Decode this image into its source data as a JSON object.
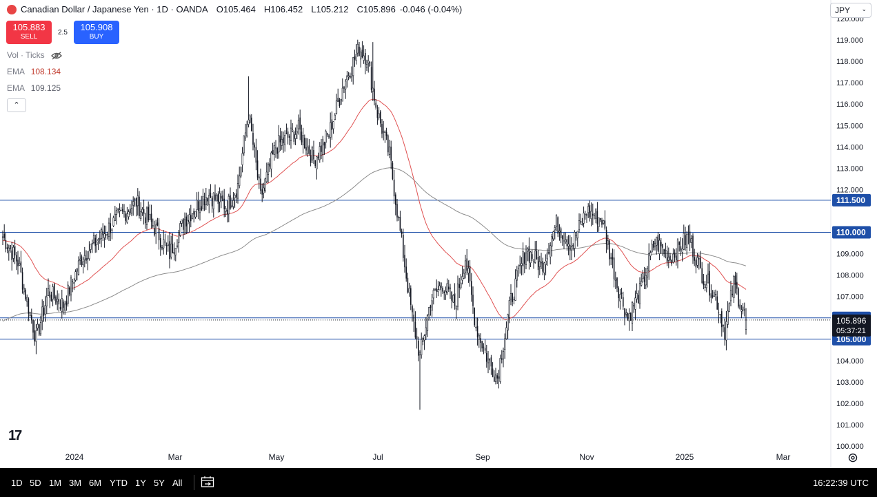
{
  "legend": {
    "symbol": "Canadian Dollar / Japanese Yen · 1D · OANDA",
    "open_label": "O",
    "open": "105.464",
    "high_label": "H",
    "high": "106.452",
    "low_label": "L",
    "low": "105.212",
    "close_label": "C",
    "close": "105.896",
    "change": "-0.046 (-0.04%)"
  },
  "trade": {
    "sell_price": "105.883",
    "sell_label": "SELL",
    "spread": "2.5",
    "buy_price": "105.908",
    "buy_label": "BUY"
  },
  "indicators": {
    "volume": "Vol · Ticks",
    "ema1_label": "EMA",
    "ema1_value": "108.134",
    "ema2_label": "EMA",
    "ema2_value": "109.125"
  },
  "currency": "JPY",
  "bottom_bar": {
    "ranges": [
      "1D",
      "5D",
      "1M",
      "3M",
      "6M",
      "YTD",
      "1Y",
      "5Y",
      "All"
    ],
    "clock": "16:22:39 UTC"
  },
  "colors": {
    "up": "#131722",
    "down": "#131722",
    "ema_fast": "#e05252",
    "ema_slow": "#8c8c8c",
    "hline": "#1e4fa8",
    "price_tag": "#1e4fa8",
    "current_tag": "#131722"
  },
  "chart_data": {
    "type": "candlestick",
    "title": "Canadian Dollar / Japanese Yen · 1D · OANDA",
    "x_tick_labels": [
      "2024",
      "Mar",
      "May",
      "Jul",
      "Sep",
      "Nov",
      "2025",
      "Mar"
    ],
    "y_tick_labels": [
      "100.000",
      "101.000",
      "102.000",
      "103.000",
      "104.000",
      "107.000",
      "108.000",
      "109.000",
      "112.000",
      "113.000",
      "114.000",
      "115.000",
      "116.000",
      "117.000",
      "118.000",
      "119.000",
      "120.000"
    ],
    "ylim": [
      100,
      120
    ],
    "horizontal_levels": [
      111.5,
      110.0,
      106.0,
      105.0
    ],
    "horizontal_level_labels": [
      "111.500",
      "110.000",
      "106.000",
      "105.000"
    ],
    "current_price": "105.896",
    "countdown": "05:37:21",
    "ema_fast_last": 108.134,
    "ema_slow_last": 109.125,
    "anchors": [
      {
        "d": 0,
        "p": 109.8
      },
      {
        "d": 10,
        "p": 108.6
      },
      {
        "d": 22,
        "p": 105.0
      },
      {
        "d": 30,
        "p": 107.2
      },
      {
        "d": 40,
        "p": 106.6
      },
      {
        "d": 52,
        "p": 108.8
      },
      {
        "d": 62,
        "p": 109.6
      },
      {
        "d": 75,
        "p": 110.6
      },
      {
        "d": 88,
        "p": 111.4
      },
      {
        "d": 100,
        "p": 110.2
      },
      {
        "d": 110,
        "p": 109.0
      },
      {
        "d": 120,
        "p": 110.6
      },
      {
        "d": 135,
        "p": 111.8
      },
      {
        "d": 148,
        "p": 111.2
      },
      {
        "d": 155,
        "p": 112.2
      },
      {
        "d": 162,
        "p": 115.6
      },
      {
        "d": 170,
        "p": 111.6
      },
      {
        "d": 180,
        "p": 114.0
      },
      {
        "d": 195,
        "p": 114.8
      },
      {
        "d": 205,
        "p": 113.4
      },
      {
        "d": 215,
        "p": 114.6
      },
      {
        "d": 225,
        "p": 117.0
      },
      {
        "d": 235,
        "p": 118.6
      },
      {
        "d": 240,
        "p": 118.2
      },
      {
        "d": 247,
        "p": 115.6
      },
      {
        "d": 255,
        "p": 113.6
      },
      {
        "d": 262,
        "p": 110.0
      },
      {
        "d": 270,
        "p": 106.0
      },
      {
        "d": 275,
        "p": 104.2
      },
      {
        "d": 282,
        "p": 106.8
      },
      {
        "d": 290,
        "p": 107.6
      },
      {
        "d": 298,
        "p": 106.6
      },
      {
        "d": 305,
        "p": 108.8
      },
      {
        "d": 312,
        "p": 105.6
      },
      {
        "d": 320,
        "p": 104.0
      },
      {
        "d": 326,
        "p": 103.2
      },
      {
        "d": 335,
        "p": 106.8
      },
      {
        "d": 345,
        "p": 109.2
      },
      {
        "d": 355,
        "p": 108.4
      },
      {
        "d": 365,
        "p": 110.4
      },
      {
        "d": 375,
        "p": 109.4
      },
      {
        "d": 385,
        "p": 111.0
      },
      {
        "d": 395,
        "p": 110.6
      },
      {
        "d": 405,
        "p": 107.6
      },
      {
        "d": 412,
        "p": 106.0
      },
      {
        "d": 420,
        "p": 107.2
      },
      {
        "d": 430,
        "p": 109.6
      },
      {
        "d": 440,
        "p": 108.8
      },
      {
        "d": 452,
        "p": 109.8
      },
      {
        "d": 460,
        "p": 108.2
      },
      {
        "d": 470,
        "p": 107.0
      },
      {
        "d": 476,
        "p": 105.4
      },
      {
        "d": 482,
        "p": 107.6
      },
      {
        "d": 490,
        "p": 105.9
      }
    ]
  }
}
